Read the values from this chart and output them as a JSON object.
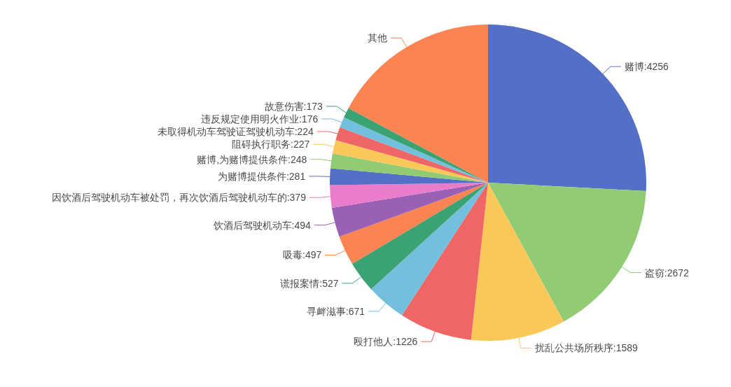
{
  "chart_data": {
    "type": "pie",
    "categories": [
      "赌博",
      "盗窃",
      "扰乱公共场所秩序",
      "殴打他人",
      "寻衅滋事",
      "谎报案情",
      "吸毒",
      "饮酒后驾驶机动车",
      "因饮酒后驾驶机动车被处罚，再次饮酒后驾驶机动车的",
      "为赌博提供条件",
      "赌博,为赌博提供条件",
      "阻碍执行职务",
      "未取得机动车驾驶证驾驶机动车",
      "违反规定使用明火作业",
      "故意伤害",
      "其他"
    ],
    "values": [
      4256,
      2672,
      1589,
      1226,
      671,
      527,
      497,
      494,
      379,
      281,
      248,
      227,
      224,
      176,
      173,
      2830
    ],
    "value_labels": [
      "4256",
      "2672",
      "1589",
      "1226",
      "671",
      "527",
      "497",
      "494",
      "379",
      "281",
      "248",
      "227",
      "224",
      "176",
      "173",
      null
    ],
    "colors": [
      "#5470c6",
      "#91cc75",
      "#fac858",
      "#ee6666",
      "#73c0de",
      "#3ba272",
      "#fc8452",
      "#9a60b4",
      "#ea7ccc",
      "#5470c6",
      "#91cc75",
      "#fac858",
      "#ee6666",
      "#73c0de",
      "#3ba272",
      "#fc8452"
    ]
  }
}
